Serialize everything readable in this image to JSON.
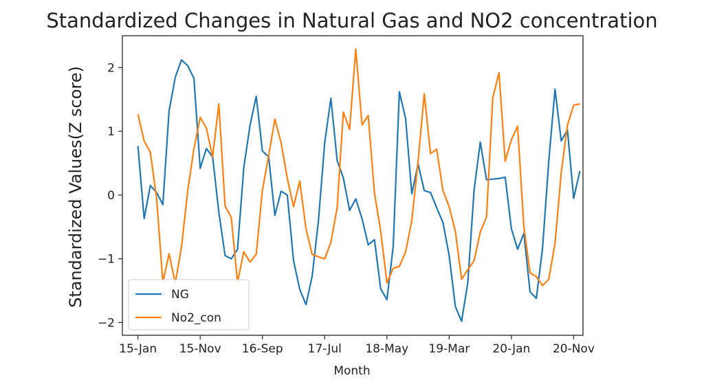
{
  "chart_data": {
    "type": "line",
    "title": "Standardized Changes in Natural Gas and NO2 concentration",
    "xlabel": "Month",
    "ylabel": "Standardized Values(Z score)",
    "x_ticks": [
      "15-Jan",
      "15-Nov",
      "16-Sep",
      "17-Jul",
      "18-May",
      "19-Mar",
      "20-Jan",
      "20-Nov"
    ],
    "y_ticks": [
      -2,
      -1,
      0,
      1,
      2
    ],
    "xlim": [
      -2.5,
      71.5
    ],
    "ylim": [
      -2.2,
      2.5
    ],
    "grid": false,
    "legend_position": "lower-left",
    "series": [
      {
        "name": "NG",
        "color": "#1f77b4",
        "values": [
          0.77,
          -0.37,
          0.15,
          0.04,
          -0.15,
          1.32,
          1.85,
          2.12,
          2.03,
          1.83,
          0.42,
          0.73,
          0.6,
          -0.27,
          -0.95,
          -1.0,
          -0.85,
          0.43,
          1.09,
          1.55,
          0.69,
          0.6,
          -0.32,
          0.06,
          0.0,
          -1.03,
          -1.48,
          -1.72,
          -1.27,
          -0.4,
          0.82,
          1.52,
          0.54,
          0.27,
          -0.24,
          -0.06,
          -0.37,
          -0.78,
          -0.7,
          -1.47,
          -1.64,
          -0.81,
          1.62,
          1.2,
          0.02,
          0.49,
          0.07,
          0.04,
          -0.2,
          -0.43,
          -0.95,
          -1.75,
          -1.98,
          -1.37,
          0.08,
          0.83,
          0.24,
          0.25,
          0.26,
          0.28,
          -0.53,
          -0.85,
          -0.6,
          -1.52,
          -1.62,
          -0.84,
          0.53,
          1.66,
          0.85,
          1.02,
          -0.05,
          0.38
        ]
      },
      {
        "name": "No2_con",
        "color": "#ff7f0e",
        "values": [
          1.27,
          0.85,
          0.67,
          -0.05,
          -1.37,
          -0.92,
          -1.38,
          -0.81,
          0.07,
          0.73,
          1.22,
          1.05,
          0.6,
          1.43,
          -0.17,
          -0.35,
          -1.37,
          -0.89,
          -1.05,
          -0.93,
          0.08,
          0.62,
          1.19,
          0.82,
          0.26,
          -0.18,
          0.22,
          -0.53,
          -0.93,
          -0.97,
          -1.0,
          -0.74,
          -0.2,
          1.3,
          1.03,
          2.29,
          1.1,
          1.25,
          0.03,
          -0.56,
          -1.38,
          -1.15,
          -1.12,
          -0.89,
          -0.4,
          0.53,
          1.59,
          0.65,
          0.72,
          0.07,
          -0.18,
          -0.57,
          -1.32,
          -1.17,
          -1.03,
          -0.58,
          -0.34,
          1.52,
          1.92,
          0.53,
          0.87,
          1.08,
          -0.5,
          -1.22,
          -1.28,
          -1.42,
          -1.32,
          -0.76,
          0.35,
          1.1,
          1.41,
          1.43
        ]
      }
    ]
  }
}
